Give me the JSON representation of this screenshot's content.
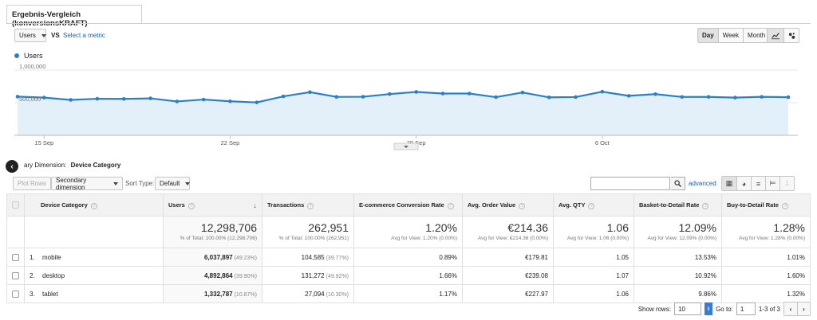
{
  "tab_title": "Ergebnis-Vergleich (konversionsKRAFT)",
  "metric_selector": {
    "value": "Users",
    "vs": "VS",
    "select_metric": "Select a metric"
  },
  "granularity": [
    "Day",
    "Week",
    "Month"
  ],
  "granularity_active": "Day",
  "chart_type_icons": [
    "line-chart-icon",
    "motion-chart-icon"
  ],
  "legend": {
    "label": "Users",
    "color": "#2a80c6"
  },
  "chart_data": {
    "type": "area",
    "title": "",
    "series": [
      {
        "name": "Users",
        "values": [
          593000,
          578000,
          543000,
          560000,
          558000,
          566000,
          519000,
          548000,
          521000,
          504000,
          597000,
          661000,
          589000,
          591000,
          632000,
          665000,
          640000,
          640000,
          585000,
          656000,
          582000,
          586000,
          668000,
          605000,
          631000,
          588000,
          589000,
          578000,
          590000,
          584000
        ]
      }
    ],
    "x_tick_labels": [
      "15 Sep",
      "22 Sep",
      "29 Sep",
      "6 Oct"
    ],
    "y_tick_labels": [
      "1,000,000",
      "500,000"
    ],
    "ylim": [
      0,
      1000000
    ],
    "grid": true,
    "line_color": "#2a80c6",
    "fill_color": "#e3f0fa"
  },
  "secondary_dimension_bar": {
    "label": "ary Dimension:",
    "value": "Device Category"
  },
  "toolbar": {
    "plot_rows": "Plot Rows",
    "secondary_dimension": "Secondary dimension",
    "sort_type_label": "Sort Type:",
    "sort_type_value": "Default",
    "advanced": "advanced"
  },
  "table": {
    "headers": [
      "Device Category",
      "Users",
      "Transactions",
      "E-commerce Conversion Rate",
      "Avg. Order Value",
      "Avg. QTY",
      "Basket-to-Detail Rate",
      "Buy-to-Detail Rate"
    ],
    "totals": [
      {
        "value": "12,298,706",
        "sub": "% of Total: 100.00% (12,298,706)"
      },
      {
        "value": "262,951",
        "sub": "% of Total: 100.00% (262,951)"
      },
      {
        "value": "1.20%",
        "sub": "Avg for View: 1.20% (0.00%)"
      },
      {
        "value": "€214.36",
        "sub": "Avg for View: €214.36 (0.00%)"
      },
      {
        "value": "1.06",
        "sub": "Avg for View: 1.06 (0.00%)"
      },
      {
        "value": "12.09%",
        "sub": "Avg for View: 12.09% (0.00%)"
      },
      {
        "value": "1.28%",
        "sub": "Avg for View: 1.28% (0.00%)"
      }
    ],
    "rows": [
      {
        "num": "1.",
        "name": "mobile",
        "users": "6,037,897",
        "users_pct": "(49.23%)",
        "transactions": "104,585",
        "transactions_pct": "(39.77%)",
        "conv": "0.89%",
        "aov": "€179.81",
        "qty": "1.05",
        "btd": "13.53%",
        "buy": "1.01%"
      },
      {
        "num": "2.",
        "name": "desktop",
        "users": "4,892,864",
        "users_pct": "(39.90%)",
        "transactions": "131,272",
        "transactions_pct": "(49.92%)",
        "conv": "1.66%",
        "aov": "€239.08",
        "qty": "1.07",
        "btd": "10.92%",
        "buy": "1.60%"
      },
      {
        "num": "3.",
        "name": "tablet",
        "users": "1,332,787",
        "users_pct": "(10.87%)",
        "transactions": "27,094",
        "transactions_pct": "(10.30%)",
        "conv": "1.17%",
        "aov": "€227.97",
        "qty": "1.06",
        "btd": "9.86%",
        "buy": "1.32%"
      }
    ]
  },
  "pagination": {
    "show_rows_label": "Show rows:",
    "show_rows_value": "10",
    "goto_label": "Go to:",
    "goto_value": "1",
    "range": "1-3 of 3"
  }
}
